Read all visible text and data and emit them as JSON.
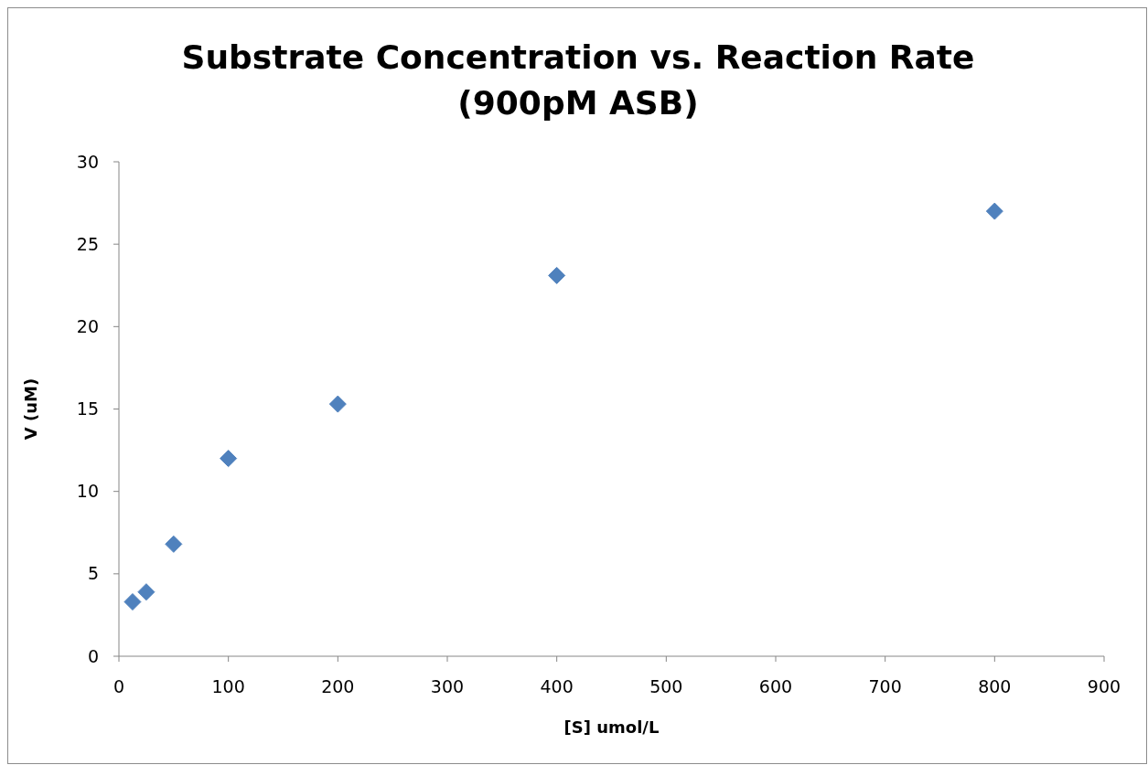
{
  "chart_data": {
    "type": "scatter",
    "title": "Substrate Concentration vs. Reaction Rate\n(900pM ASB)",
    "xlabel": "[S] umol/L",
    "ylabel": "V (uM)",
    "x": [
      12.5,
      25,
      50,
      100,
      200,
      400,
      800
    ],
    "series": [
      {
        "color": "#4f81bd",
        "values": [
          3.3,
          3.9,
          6.8,
          12,
          15.3,
          23.1,
          27
        ]
      }
    ],
    "xlim": [
      0,
      900
    ],
    "xticks": [
      0,
      100,
      200,
      300,
      400,
      500,
      600,
      700,
      800,
      900
    ],
    "ylim": [
      0,
      30
    ],
    "yticks": [
      0,
      5,
      10,
      15,
      20,
      25,
      30
    ],
    "grid": false,
    "marker": "diamond"
  }
}
